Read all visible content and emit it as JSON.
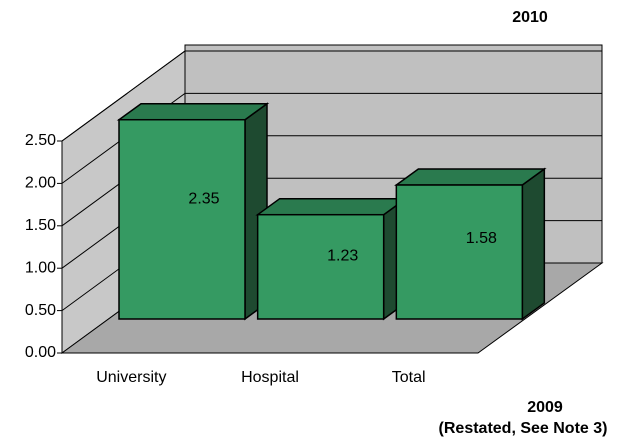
{
  "chart_data": {
    "type": "bar3d",
    "annotations": [
      "2010",
      "2009",
      "(Restated, See Note 3)"
    ],
    "categories": [
      "University",
      "Hospital",
      "Total"
    ],
    "values": [
      2.35,
      1.23,
      1.58
    ],
    "color": "#359a62",
    "top_color": "#2a7a4e",
    "side_color": "#1e4a30",
    "ylim": [
      0,
      2.5
    ],
    "yticks": [
      {
        "value": 0,
        "label": "0.00"
      },
      {
        "value": 0.5,
        "label": "0.50"
      },
      {
        "value": 1,
        "label": "1.00"
      },
      {
        "value": 1.5,
        "label": "1.50"
      },
      {
        "value": 2,
        "label": "2.00"
      },
      {
        "value": 2.5,
        "label": "2.50"
      }
    ],
    "grid": true
  }
}
